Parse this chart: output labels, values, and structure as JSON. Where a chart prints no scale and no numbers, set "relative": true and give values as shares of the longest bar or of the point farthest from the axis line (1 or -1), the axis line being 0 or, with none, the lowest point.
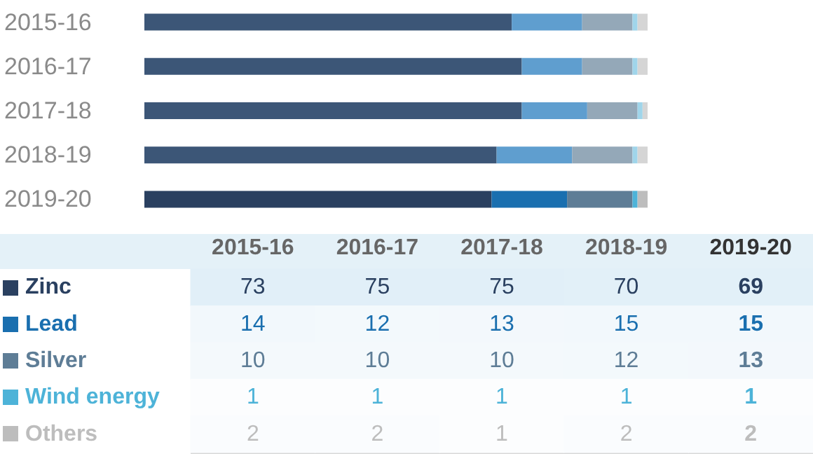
{
  "chart_data": [
    {
      "type": "bar",
      "orientation": "horizontal",
      "stacked": true,
      "relative": true,
      "categories": [
        "2015-16",
        "2016-17",
        "2017-18",
        "2018-19",
        "2019-20"
      ],
      "series": [
        {
          "color": "#2a4060",
          "colors": [
            "#3c5677",
            "#3c5677",
            "#3c5677",
            "#3c5677",
            "#2a4060"
          ],
          "values": [
            0.73,
            0.75,
            0.75,
            0.7,
            0.69
          ]
        },
        {
          "color": "#1a6faf",
          "colors": [
            "#5f9ecf",
            "#5f9ecf",
            "#5f9ecf",
            "#5f9ecf",
            "#1a6faf"
          ],
          "values": [
            0.14,
            0.12,
            0.13,
            0.15,
            0.15
          ]
        },
        {
          "color": "#5e7d96",
          "colors": [
            "#94a8b8",
            "#94a8b8",
            "#94a8b8",
            "#94a8b8",
            "#5e7d96"
          ],
          "values": [
            0.1,
            0.1,
            0.1,
            0.12,
            0.13
          ]
        },
        {
          "color": "#4db3d8",
          "colors": [
            "#a0d5ea",
            "#a0d5ea",
            "#a0d5ea",
            "#a0d5ea",
            "#4db3d8"
          ],
          "values": [
            0.01,
            0.01,
            0.01,
            0.01,
            0.01
          ]
        },
        {
          "color": "#bdbdbd",
          "colors": [
            "#d5d5d5",
            "#d5d5d5",
            "#d5d5d5",
            "#d5d5d5",
            "#bdbdbd"
          ],
          "values": [
            0.02,
            0.02,
            0.01,
            0.02,
            0.02
          ]
        }
      ]
    },
    {
      "type": "heatmap",
      "categories": [
        "2015-16",
        "2016-17",
        "2017-18",
        "2018-19",
        "2019-20"
      ],
      "y_categories": [
        "Zinc",
        "Lead",
        "Silver",
        "Wind energy",
        "Others"
      ],
      "cells": [
        [
          73,
          75,
          75,
          70,
          69
        ],
        [
          14,
          12,
          13,
          15,
          15
        ],
        [
          10,
          10,
          10,
          12,
          13
        ],
        [
          1,
          1,
          1,
          1,
          1
        ],
        [
          2,
          2,
          1,
          2,
          2
        ]
      ],
      "cell_labels": [
        [
          "73",
          "75",
          "75",
          "70",
          "69"
        ],
        [
          "14",
          "12",
          "13",
          "15",
          "15"
        ],
        [
          "10",
          "10",
          "10",
          "12",
          "13"
        ],
        [
          "1",
          "1",
          "1",
          "1",
          "1"
        ],
        [
          "2",
          "2",
          "1",
          "2",
          "2"
        ]
      ]
    }
  ]
}
